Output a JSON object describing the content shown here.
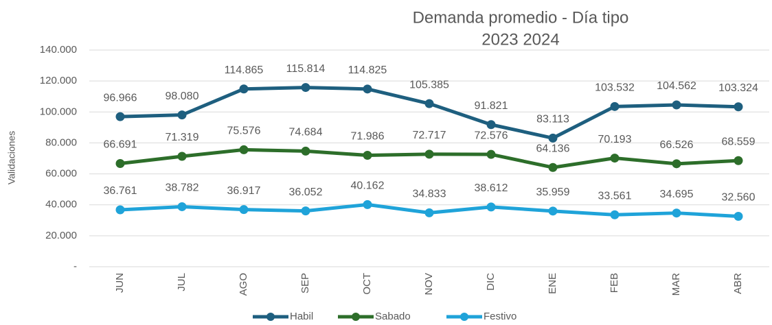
{
  "chart_data": {
    "type": "line",
    "title": "Demanda promedio - Día tipo",
    "subtitle": "2023 2024",
    "y_label": "Validaciones",
    "categories": [
      "JUN",
      "JUL",
      "AGO",
      "SEP",
      "OCT",
      "NOV",
      "DIC",
      "ENE",
      "FEB",
      "MAR",
      "ABR"
    ],
    "series": [
      {
        "name": "Habil",
        "color": "#1e5f7f",
        "values": [
          96966,
          98080,
          114865,
          115814,
          114825,
          105385,
          91821,
          83113,
          103532,
          104562,
          103324
        ],
        "value_labels": [
          "96.966",
          "98.080",
          "114.865",
          "115.814",
          "114.825",
          "105.385",
          "91.821",
          "83.113",
          "103.532",
          "104.562",
          "103.324"
        ]
      },
      {
        "name": "Sabado",
        "color": "#2d6e2a",
        "values": [
          66691,
          71319,
          75576,
          74684,
          71986,
          72717,
          72576,
          64136,
          70193,
          66526,
          68559
        ],
        "value_labels": [
          "66.691",
          "71.319",
          "75.576",
          "74.684",
          "71.986",
          "72.717",
          "72.576",
          "64.136",
          "70.193",
          "66.526",
          "68.559"
        ]
      },
      {
        "name": "Festivo",
        "color": "#1fa3d9",
        "values": [
          36761,
          38782,
          36917,
          36052,
          40162,
          34833,
          38612,
          35959,
          33561,
          34695,
          32560
        ],
        "value_labels": [
          "36.761",
          "38.782",
          "36.917",
          "36.052",
          "40.162",
          "34.833",
          "38.612",
          "35.959",
          "33.561",
          "34.695",
          "32.560"
        ]
      }
    ],
    "ylim": [
      0,
      140000
    ],
    "yticks": [
      {
        "value": 0,
        "label": "-"
      },
      {
        "value": 20000,
        "label": "20.000"
      },
      {
        "value": 40000,
        "label": "40.000"
      },
      {
        "value": 60000,
        "label": "60.000"
      },
      {
        "value": 80000,
        "label": "80.000"
      },
      {
        "value": 100000,
        "label": "100.000"
      },
      {
        "value": 120000,
        "label": "120.000"
      },
      {
        "value": 140000,
        "label": "140.000"
      }
    ],
    "grid": true,
    "legend": "bottom"
  }
}
